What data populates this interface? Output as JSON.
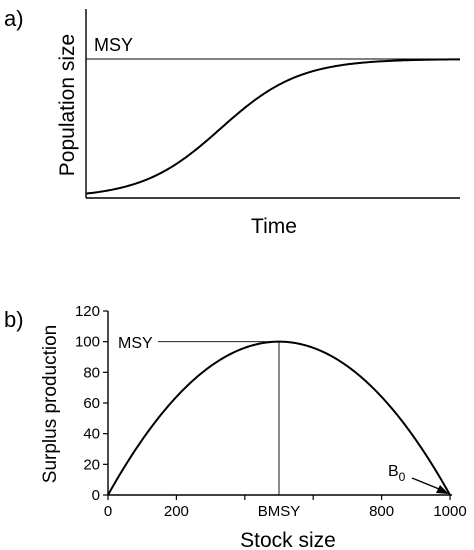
{
  "chart_data": [
    {
      "panel_label": "a)",
      "type": "line",
      "xlabel": "Time",
      "ylabel": "Population size",
      "reference_line": {
        "label": "MSY"
      },
      "curve": "logistic",
      "x": [
        0,
        1,
        2,
        3,
        4,
        5,
        6,
        7,
        8,
        9,
        10
      ],
      "y": [
        0.02,
        0.06,
        0.18,
        0.38,
        0.6,
        0.78,
        0.9,
        0.96,
        0.99,
        1.0,
        1.0
      ]
    },
    {
      "panel_label": "b)",
      "type": "line",
      "xlabel": "Stock size",
      "ylabel": "Surplus production",
      "xlim": [
        0,
        1000
      ],
      "ylim": [
        0,
        120
      ],
      "yticks": [
        "0",
        "20",
        "40",
        "60",
        "80",
        "100",
        "120"
      ],
      "xtick_labels": [
        "0",
        "200",
        "BMSY",
        "800",
        "1000"
      ],
      "xtick_values": [
        0,
        200,
        500,
        800,
        1000
      ],
      "xticks_minor": [
        0,
        200,
        400,
        600,
        800,
        1000
      ],
      "hline_label": "MSY",
      "b0_label": "B",
      "b0_subscript": "0",
      "x": [
        0,
        100,
        200,
        300,
        400,
        500,
        600,
        700,
        800,
        900,
        1000
      ],
      "y": [
        0,
        36,
        64,
        84,
        96,
        100,
        96,
        84,
        64,
        36,
        0
      ]
    }
  ]
}
